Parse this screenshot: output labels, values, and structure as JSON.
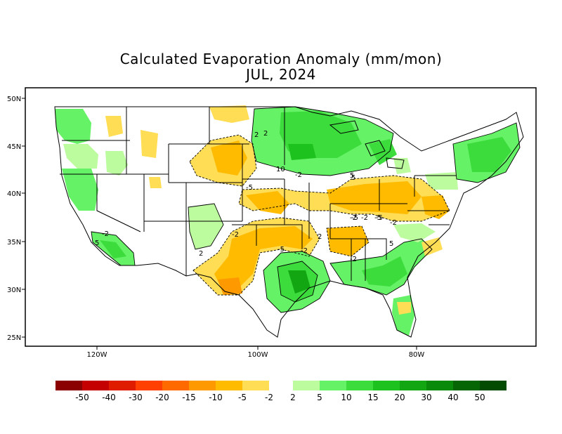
{
  "title": "Calculated Evaporation Anomaly (mm/mon)",
  "subtitle": "JUL, 2024",
  "lat_labels": [
    "50N",
    "45N",
    "40N",
    "35N",
    "30N",
    "25N"
  ],
  "lon_labels": [
    "120W",
    "100W",
    "80W"
  ],
  "contour_labels": [
    "2",
    "-2",
    "10",
    "-2",
    "-5",
    "5",
    "-5",
    "-2",
    "-2",
    "-5",
    "-5",
    "2",
    "-2",
    "2",
    "5",
    "-2",
    "5",
    "-2",
    "-2",
    "5",
    "-5",
    "2"
  ],
  "colorbar": {
    "neg_colors": [
      "#8b0000",
      "#c40000",
      "#e01c00",
      "#ff4000",
      "#ff6a00",
      "#ff9900",
      "#ffbb00",
      "#ffdd55"
    ],
    "pos_colors": [
      "#bdfc9e",
      "#66f266",
      "#3ddc3d",
      "#1ec21e",
      "#12a612",
      "#0a8a0a",
      "#066606",
      "#034a03"
    ],
    "neg_labels": [
      "-50",
      "-40",
      "-30",
      "-20",
      "-15",
      "-10",
      "-5",
      "-2"
    ],
    "pos_labels": [
      "2",
      "5",
      "10",
      "15",
      "20",
      "30",
      "40",
      "50"
    ]
  }
}
